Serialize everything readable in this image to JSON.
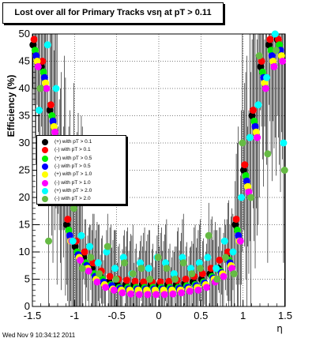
{
  "title": "Lost over all for Primary Tracks vsη at pT > 0.11",
  "footer": "Wed Nov  9 10:34:12 2011",
  "chart_data": {
    "type": "scatter",
    "xlabel": "η",
    "ylabel": "Efficiency (%)",
    "xlim": [
      -1.5,
      1.5
    ],
    "ylim": [
      0,
      50
    ],
    "x_ticks": [
      "-1.5",
      "-1",
      "-0.5",
      "0",
      "0.5",
      "1",
      "1.5"
    ],
    "y_ticks": [
      "0",
      "5",
      "10",
      "15",
      "20",
      "25",
      "30",
      "35",
      "40",
      "45",
      "50"
    ],
    "grid": true,
    "legend_position": "left-middle",
    "legend": [
      {
        "label": "(+) with pT > 0.1",
        "color": "#000000"
      },
      {
        "label": "(-) with pT > 0.1",
        "color": "#ff0000"
      },
      {
        "label": "(+) with pT > 0.5",
        "color": "#00ee00"
      },
      {
        "label": "(-) with pT > 0.5",
        "color": "#0000ff"
      },
      {
        "label": "(+) with pT > 1.0",
        "color": "#ffff00"
      },
      {
        "label": "(-) with pT > 1.0",
        "color": "#ff00ff"
      },
      {
        "label": "(+) with pT > 2.0",
        "color": "#00ffff"
      },
      {
        "label": "(-) with pT > 2.0",
        "color": "#66bb44"
      }
    ],
    "x": [
      -1.45,
      -1.35,
      -1.25,
      -1.15,
      -1.05,
      -0.95,
      -0.85,
      -0.75,
      -0.65,
      -0.55,
      -0.45,
      -0.35,
      -0.25,
      -0.15,
      -0.05,
      0.05,
      0.15,
      0.25,
      0.35,
      0.45,
      0.55,
      0.65,
      0.75,
      0.85,
      0.95,
      1.05,
      1.15,
      1.25,
      1.35,
      1.45
    ],
    "series": [
      {
        "color": "#000000",
        "values": [
          48,
          44,
          36,
          25,
          15,
          11,
          9,
          7,
          5.5,
          4.5,
          4,
          4,
          4,
          4,
          4,
          4,
          4,
          4,
          4.2,
          4.5,
          5,
          6,
          7,
          9,
          15,
          25,
          35,
          44,
          48,
          49
        ]
      },
      {
        "color": "#ff0000",
        "values": [
          49,
          45,
          37,
          26,
          16,
          12,
          10,
          8,
          6.5,
          5.5,
          5,
          4.8,
          4.6,
          4.5,
          4.5,
          4.5,
          4.6,
          4.8,
          5,
          5.5,
          6,
          7,
          8.5,
          10,
          16,
          26,
          36,
          45,
          49,
          49
        ]
      },
      {
        "color": "#00ee00",
        "values": [
          47,
          43,
          35,
          24,
          14,
          10,
          8,
          6,
          5,
          4,
          3.5,
          3.5,
          3.5,
          3.5,
          3.5,
          3.5,
          3.5,
          3.5,
          3.8,
          4,
          4.5,
          5.5,
          6.5,
          8.5,
          14,
          24,
          34,
          43,
          47,
          48
        ]
      },
      {
        "color": "#0000ff",
        "values": [
          46,
          42,
          34,
          23,
          13,
          9.5,
          7.5,
          5.5,
          4.5,
          3.8,
          3.3,
          3.2,
          3.2,
          3.2,
          3.2,
          3.2,
          3.2,
          3.3,
          3.5,
          3.8,
          4.3,
          5.2,
          6.2,
          8,
          13,
          23,
          33,
          42,
          46,
          47
        ]
      },
      {
        "color": "#ffff00",
        "values": [
          45,
          41,
          33,
          22,
          12,
          9,
          7,
          5,
          4,
          3.2,
          3,
          3,
          3,
          3,
          3,
          3,
          3,
          3,
          3.2,
          3.5,
          4,
          5,
          6,
          7.5,
          12,
          22,
          32,
          41,
          45,
          46
        ]
      },
      {
        "color": "#ff00ff",
        "values": [
          44,
          40,
          32,
          21,
          12,
          8.5,
          6.5,
          4.5,
          3.5,
          3,
          2.5,
          2.3,
          2.2,
          2.2,
          2.2,
          2.2,
          2.3,
          2.5,
          2.8,
          3,
          3.5,
          4.5,
          5.5,
          7,
          12,
          21,
          31,
          40,
          44,
          45
        ]
      },
      {
        "color": "#00ffff",
        "values": [
          36,
          48,
          40,
          30,
          12,
          13,
          11,
          8,
          10,
          7,
          9,
          6,
          8,
          7,
          9,
          8,
          6,
          9,
          7,
          8,
          9,
          7,
          12,
          10,
          20,
          31,
          37,
          42,
          50,
          30
        ]
      },
      {
        "color": "#66bb44",
        "values": [
          40,
          12,
          30,
          22,
          18,
          7,
          9,
          6,
          11,
          5,
          8,
          6,
          7,
          5,
          9,
          7,
          5,
          8,
          6,
          7,
          13,
          5,
          9,
          6,
          30,
          20,
          46,
          28,
          47,
          25
        ]
      }
    ]
  }
}
